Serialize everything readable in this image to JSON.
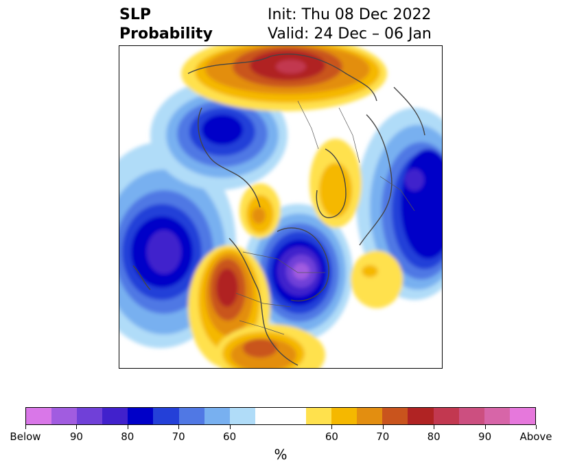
{
  "header": {
    "left_line1": "SLP",
    "left_line2": "Probability",
    "right_line1": "Init: Thu 08 Dec 2022",
    "right_line2": "Valid: 24 Dec – 06 Jan"
  },
  "colorbar": {
    "unit": "%",
    "colors": [
      "#d977e8",
      "#a15ce0",
      "#7040d8",
      "#4121cc",
      "#0000c8",
      "#2440d8",
      "#5078e4",
      "#78b0f0",
      "#b0dcf8",
      "#ffffff",
      "#ffffff",
      "#ffe14d",
      "#f5b800",
      "#e38e10",
      "#c9541d",
      "#b02323",
      "#c23850",
      "#cc4f80",
      "#d765a8",
      "#e678dc"
    ],
    "tick_labels": [
      "Below",
      "90",
      "80",
      "70",
      "60",
      "60",
      "70",
      "80",
      "90",
      "Above"
    ]
  }
}
